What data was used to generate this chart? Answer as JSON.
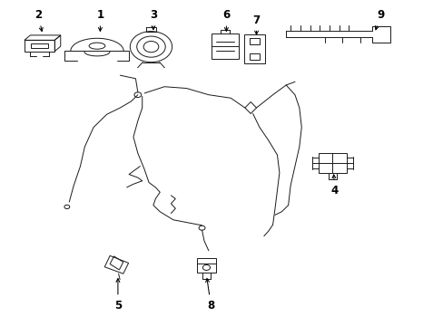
{
  "background_color": "#ffffff",
  "line_color": "#1a1a1a",
  "figsize": [
    4.89,
    3.6
  ],
  "dpi": 100,
  "labels": {
    "2": [
      0.085,
      0.955,
      0.095,
      0.895
    ],
    "1": [
      0.225,
      0.955,
      0.225,
      0.895
    ],
    "3": [
      0.345,
      0.955,
      0.345,
      0.9
    ],
    "6": [
      0.51,
      0.955,
      0.51,
      0.895
    ],
    "7": [
      0.578,
      0.94,
      0.578,
      0.885
    ],
    "9": [
      0.858,
      0.955,
      0.845,
      0.9
    ],
    "4": [
      0.755,
      0.415,
      0.752,
      0.475
    ],
    "5": [
      0.265,
      0.062,
      0.265,
      0.155
    ],
    "8": [
      0.475,
      0.062,
      0.465,
      0.155
    ]
  }
}
